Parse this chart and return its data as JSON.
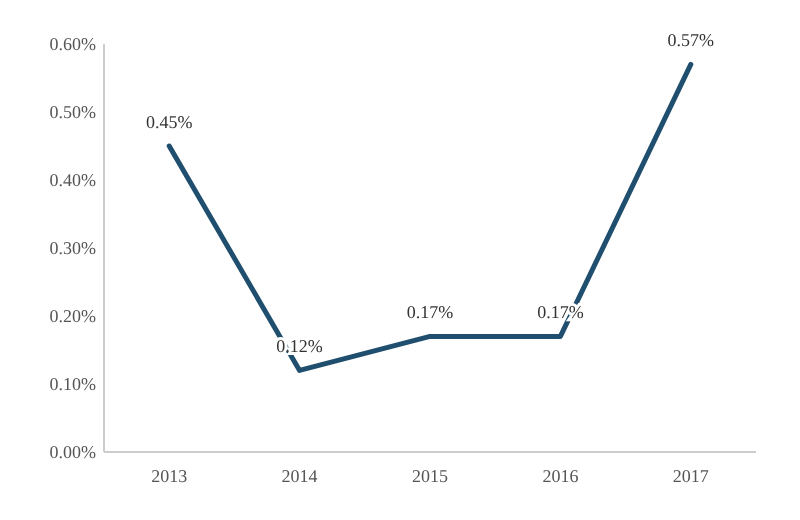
{
  "chart_data": {
    "type": "line",
    "categories": [
      "2013",
      "2014",
      "2015",
      "2016",
      "2017"
    ],
    "series": [
      {
        "color": "#1f4e6e",
        "values": [
          0.45,
          0.12,
          0.17,
          0.17,
          0.57
        ],
        "value_labels": [
          "0.45%",
          "0.12%",
          "0.17%",
          "0.17%",
          "0.57%"
        ]
      }
    ],
    "ylim": [
      0,
      0.6
    ],
    "yticks": [
      {
        "value": 0,
        "label": "0.00%"
      },
      {
        "value": 0.1,
        "label": "0.10%"
      },
      {
        "value": 0.2,
        "label": "0.20%"
      },
      {
        "value": 0.3,
        "label": "0.30%"
      },
      {
        "value": 0.4,
        "label": "0.40%"
      },
      {
        "value": 0.5,
        "label": "0.50%"
      },
      {
        "value": 0.6,
        "label": "0.60%"
      }
    ],
    "grid": false,
    "marker": "none",
    "line_style": "solid"
  }
}
